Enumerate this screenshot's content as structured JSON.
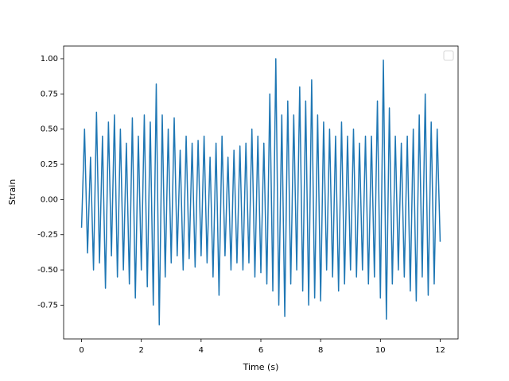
{
  "chart_data": {
    "type": "line",
    "xlabel": "Time (s)",
    "ylabel": "Strain",
    "legend": "upper right",
    "xlim": [
      -0.6,
      12.6
    ],
    "ylim": [
      -0.99,
      1.09
    ],
    "xticks": [
      0,
      2,
      4,
      6,
      8,
      10,
      12
    ],
    "yticks": [
      -0.75,
      {
        "value": -0.5,
        "label": "-0.50"
      },
      -0.25,
      {
        "value": 0,
        "label": "0.00"
      },
      0.25,
      {
        "value": 0.5,
        "label": "0.50"
      },
      0.75,
      {
        "value": 1,
        "label": "1.00"
      }
    ],
    "x": [
      0,
      0.1,
      0.2,
      0.3,
      0.4,
      0.5,
      0.6,
      0.7,
      0.8,
      0.9,
      1,
      1.1,
      1.2,
      1.3,
      1.4,
      1.5,
      1.6,
      1.7,
      1.8,
      1.9,
      2,
      2.1,
      2.2,
      2.3,
      2.4,
      2.5,
      2.6,
      2.7,
      2.8,
      2.9,
      3,
      3.1,
      3.2,
      3.3,
      3.4,
      3.5,
      3.6,
      3.7,
      3.8,
      3.9,
      4,
      4.1,
      4.2,
      4.3,
      4.4,
      4.5,
      4.6,
      4.7,
      4.8,
      4.9,
      5,
      5.1,
      5.2,
      5.3,
      5.4,
      5.5,
      5.6,
      5.7,
      5.8,
      5.9,
      6,
      6.1,
      6.2,
      6.3,
      6.4,
      6.5,
      6.6,
      6.7,
      6.8,
      6.9,
      7,
      7.1,
      7.2,
      7.3,
      7.4,
      7.5,
      7.6,
      7.7,
      7.8,
      7.9,
      8,
      8.1,
      8.2,
      8.3,
      8.4,
      8.5,
      8.6,
      8.7,
      8.8,
      8.9,
      9,
      9.1,
      9.2,
      9.3,
      9.4,
      9.5,
      9.6,
      9.7,
      9.8,
      9.9,
      10,
      10.1,
      10.2,
      10.3,
      10.4,
      10.5,
      10.6,
      10.7,
      10.8,
      10.9,
      11,
      11.1,
      11.2,
      11.3,
      11.4,
      11.5,
      11.6,
      11.7,
      11.8,
      11.9,
      12
    ],
    "series": [
      {
        "color": "#1f77b4",
        "values": [
          -0.2,
          0.5,
          -0.38,
          0.3,
          -0.5,
          0.62,
          -0.45,
          0.45,
          -0.63,
          0.55,
          -0.4,
          0.6,
          -0.55,
          0.5,
          -0.5,
          0.4,
          -0.6,
          0.58,
          -0.7,
          0.45,
          -0.5,
          0.6,
          -0.62,
          0.55,
          -0.75,
          0.82,
          -0.89,
          0.6,
          -0.55,
          0.5,
          -0.45,
          0.58,
          -0.4,
          0.35,
          -0.5,
          0.45,
          -0.42,
          0.4,
          -0.48,
          0.42,
          -0.4,
          0.45,
          -0.45,
          0.3,
          -0.55,
          0.4,
          -0.68,
          0.45,
          -0.4,
          0.3,
          -0.5,
          0.35,
          -0.45,
          0.38,
          -0.5,
          0.4,
          -0.45,
          0.5,
          -0.55,
          0.45,
          -0.52,
          0.4,
          -0.6,
          0.75,
          -0.65,
          1.0,
          -0.75,
          0.6,
          -0.83,
          0.7,
          -0.6,
          0.6,
          -0.5,
          0.8,
          -0.65,
          0.7,
          -0.75,
          0.85,
          -0.7,
          0.6,
          -0.72,
          0.55,
          -0.5,
          0.5,
          -0.55,
          0.45,
          -0.65,
          0.55,
          -0.6,
          0.45,
          -0.5,
          0.5,
          -0.55,
          0.4,
          -0.5,
          0.45,
          -0.6,
          0.45,
          -0.55,
          0.7,
          -0.7,
          0.99,
          -0.85,
          0.65,
          -0.6,
          0.45,
          -0.5,
          0.4,
          -0.55,
          0.45,
          -0.65,
          0.5,
          -0.72,
          0.6,
          -0.55,
          0.75,
          -0.68,
          0.55,
          -0.6,
          0.5,
          -0.3
        ]
      }
    ]
  }
}
